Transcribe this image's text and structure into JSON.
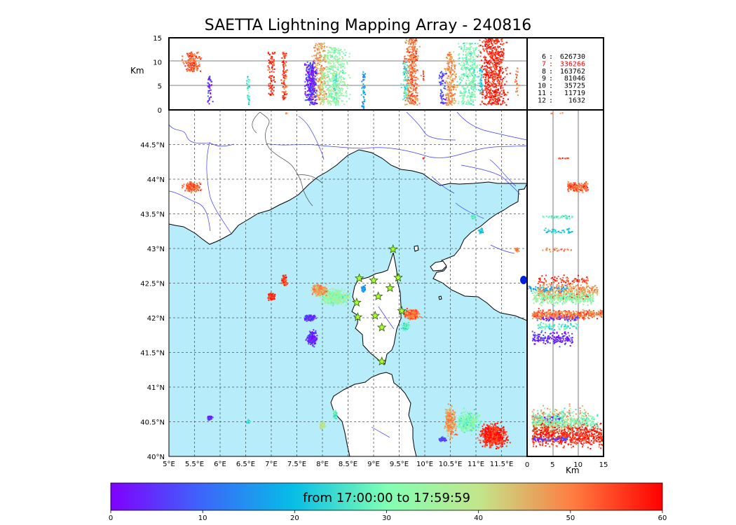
{
  "title": "SAETTA Lightning Mapping Array - 240816",
  "colors": {
    "sea": "#b7ecfa",
    "land": "#ffffff",
    "coast": "#000000",
    "rivers": "#3a3aff",
    "borders": "#444444",
    "station": "#aaff33",
    "highlight": "#ff0000"
  },
  "map": {
    "lon_range": [
      5.0,
      12.0
    ],
    "lat_range": [
      40.0,
      45.0
    ],
    "lon_ticks": [
      "5°E",
      "5.5°E",
      "6°E",
      "6.5°E",
      "7°E",
      "7.5°E",
      "8°E",
      "8.5°E",
      "9°E",
      "9.5°E",
      "10°E",
      "10.5°E",
      "11°E",
      "11.5°E"
    ],
    "lat_ticks": [
      "40°N",
      "40.5°N",
      "41°N",
      "41.5°N",
      "42°N",
      "42.5°N",
      "43°N",
      "43.5°N",
      "44°N",
      "44.5°N"
    ]
  },
  "altitude_panels": {
    "unit": "Km",
    "ticks": [
      "0",
      "5",
      "10",
      "15"
    ]
  },
  "stats": [
    {
      "level": "6",
      "count": "626730",
      "highlight": false
    },
    {
      "level": "7",
      "count": "336266",
      "highlight": true
    },
    {
      "level": "8",
      "count": "163762",
      "highlight": false
    },
    {
      "level": "9",
      "count": "81046",
      "highlight": false
    },
    {
      "level": "10",
      "count": "35725",
      "highlight": false
    },
    {
      "level": "11",
      "count": "11719",
      "highlight": false
    },
    {
      "level": "12",
      "count": "1632",
      "highlight": false
    }
  ],
  "colorbar": {
    "label": "from 17:00:00 to 17:59:59",
    "ticks": [
      "0",
      "10",
      "20",
      "30",
      "40",
      "50",
      "60"
    ]
  },
  "stations": [
    {
      "lon": 8.72,
      "lat": 42.57
    },
    {
      "lon": 9.0,
      "lat": 42.54
    },
    {
      "lon": 9.38,
      "lat": 42.99
    },
    {
      "lon": 9.48,
      "lat": 42.58
    },
    {
      "lon": 9.32,
      "lat": 42.43
    },
    {
      "lon": 9.09,
      "lat": 42.31
    },
    {
      "lon": 8.67,
      "lat": 42.22
    },
    {
      "lon": 8.69,
      "lat": 42.01
    },
    {
      "lon": 9.03,
      "lat": 42.03
    },
    {
      "lon": 9.55,
      "lat": 42.1
    },
    {
      "lon": 9.16,
      "lat": 41.86
    },
    {
      "lon": 9.16,
      "lat": 41.37
    }
  ],
  "clusters": [
    {
      "lon": 5.45,
      "lat": 43.89,
      "rl": 0.22,
      "rt": 0.09,
      "t": 52,
      "n": 170,
      "zmin": 8,
      "zmax": 12
    },
    {
      "lon": 7.0,
      "lat": 42.3,
      "rl": 0.1,
      "rt": 0.07,
      "t": 56,
      "n": 90,
      "zmin": 3,
      "zmax": 12
    },
    {
      "lon": 7.25,
      "lat": 42.53,
      "rl": 0.07,
      "rt": 0.11,
      "t": 56,
      "n": 90,
      "zmin": 2,
      "zmax": 12
    },
    {
      "lon": 8.25,
      "lat": 42.3,
      "rl": 0.35,
      "rt": 0.14,
      "t": 33,
      "n": 420,
      "zmin": 1,
      "zmax": 13
    },
    {
      "lon": 7.95,
      "lat": 42.4,
      "rl": 0.2,
      "rt": 0.11,
      "t": 47,
      "n": 220,
      "zmin": 2,
      "zmax": 14
    },
    {
      "lon": 7.75,
      "lat": 42.0,
      "rl": 0.15,
      "rt": 0.06,
      "t": 5,
      "n": 120,
      "zmin": 2,
      "zmax": 10
    },
    {
      "lon": 7.8,
      "lat": 41.7,
      "rl": 0.14,
      "rt": 0.14,
      "t": 4,
      "n": 160,
      "zmin": 1,
      "zmax": 9
    },
    {
      "lon": 8.8,
      "lat": 42.42,
      "rl": 0.05,
      "rt": 0.06,
      "t": 16,
      "n": 50,
      "zmin": 0,
      "zmax": 8
    },
    {
      "lon": 9.75,
      "lat": 42.05,
      "rl": 0.2,
      "rt": 0.1,
      "t": 51,
      "n": 380,
      "zmin": 1,
      "zmax": 15
    },
    {
      "lon": 9.63,
      "lat": 41.88,
      "rl": 0.1,
      "rt": 0.08,
      "t": 27,
      "n": 80,
      "zmin": 2,
      "zmax": 10
    },
    {
      "lon": 10.95,
      "lat": 43.45,
      "rl": 0.07,
      "rt": 0.04,
      "t": 28,
      "n": 40,
      "zmin": 3,
      "zmax": 9
    },
    {
      "lon": 11.1,
      "lat": 43.25,
      "rl": 0.06,
      "rt": 0.05,
      "t": 22,
      "n": 40,
      "zmin": 3,
      "zmax": 9
    },
    {
      "lon": 11.8,
      "lat": 42.98,
      "rl": 0.05,
      "rt": 0.03,
      "t": 50,
      "n": 25,
      "zmin": 3,
      "zmax": 9
    },
    {
      "lon": 5.8,
      "lat": 40.55,
      "rl": 0.07,
      "rt": 0.04,
      "t": 5,
      "n": 40,
      "zmin": 1,
      "zmax": 7
    },
    {
      "lon": 6.55,
      "lat": 40.5,
      "rl": 0.05,
      "rt": 0.04,
      "t": 25,
      "n": 35,
      "zmin": 1,
      "zmax": 7
    },
    {
      "lon": 8.0,
      "lat": 40.45,
      "rl": 0.08,
      "rt": 0.07,
      "t": 40,
      "n": 50,
      "zmin": 1,
      "zmax": 8
    },
    {
      "lon": 8.25,
      "lat": 40.6,
      "rl": 0.06,
      "rt": 0.09,
      "t": 28,
      "n": 40,
      "zmin": 1,
      "zmax": 8
    },
    {
      "lon": 10.5,
      "lat": 40.5,
      "rl": 0.15,
      "rt": 0.3,
      "t": 48,
      "n": 230,
      "zmin": 1,
      "zmax": 12
    },
    {
      "lon": 10.85,
      "lat": 40.5,
      "rl": 0.3,
      "rt": 0.2,
      "t": 30,
      "n": 330,
      "zmin": 1,
      "zmax": 14
    },
    {
      "lon": 11.35,
      "lat": 40.3,
      "rl": 0.35,
      "rt": 0.22,
      "t": 57,
      "n": 620,
      "zmin": 1,
      "zmax": 15
    },
    {
      "lon": 10.35,
      "lat": 40.25,
      "rl": 0.1,
      "rt": 0.05,
      "t": 6,
      "n": 60,
      "zmin": 1,
      "zmax": 8
    },
    {
      "lon": 9.97,
      "lat": 44.3,
      "rl": 0.02,
      "rt": 0.02,
      "t": 55,
      "n": 8,
      "zmin": 5,
      "zmax": 9
    },
    {
      "lon": 7.3,
      "lat": 44.95,
      "rl": 0.02,
      "rt": 0.02,
      "t": 48,
      "n": 6,
      "zmin": 4,
      "zmax": 8
    }
  ]
}
